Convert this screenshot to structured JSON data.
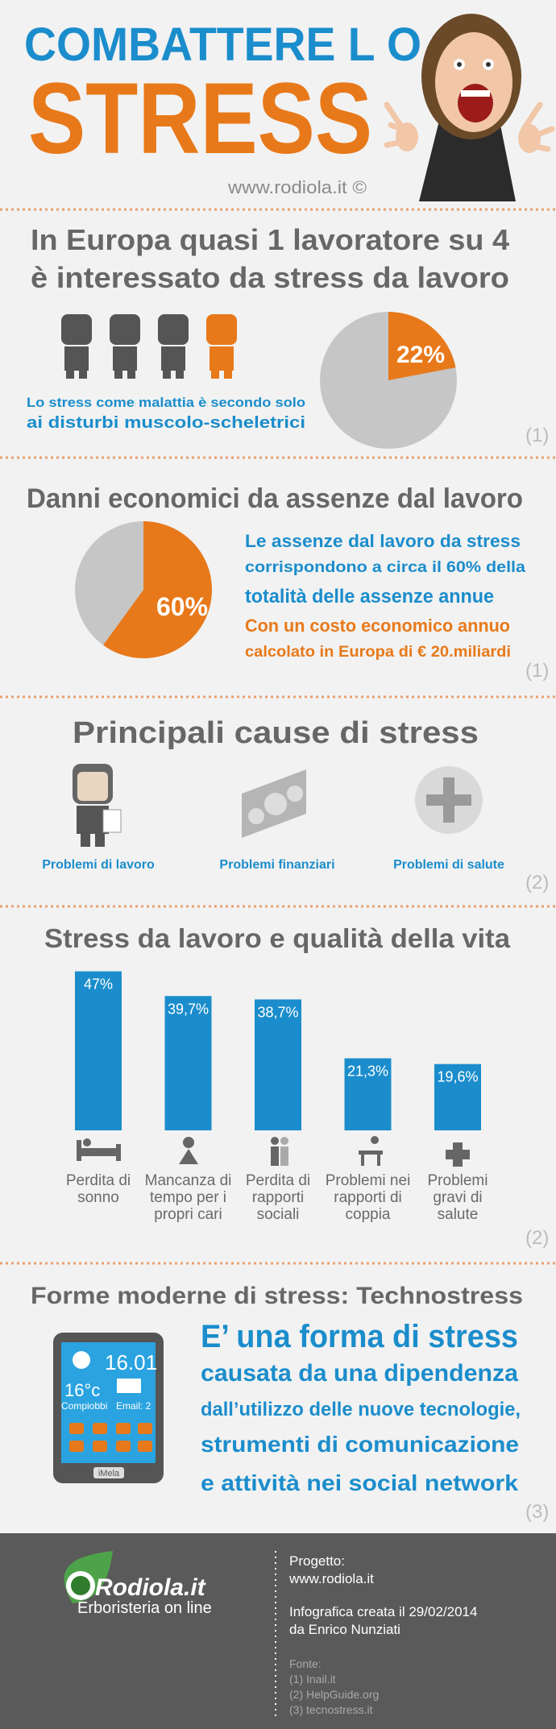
{
  "header": {
    "title_line1": "COMBATTERE L O",
    "title_line2": "STRESS",
    "site": "www.rodiola.it ©"
  },
  "section1": {
    "title_lines": [
      "In Europa quasi 1 lavoratore su 4",
      "è interessato da stress da lavoro"
    ],
    "caption_lines": [
      "Lo stress come  malattia è  secondo solo",
      "ai disturbi muscolo-scheletrici"
    ],
    "pie": {
      "type": "pie",
      "values": [
        22
      ],
      "value_labels": [
        "22%"
      ],
      "color": "#e8791a",
      "rest_color": "#c6c6c6"
    },
    "source": "(1)"
  },
  "section2": {
    "title": "Danni economici da assenze dal lavoro",
    "text_lines": [
      "Le assenze dal lavoro da stress",
      "corrispondono a circa  il 60% della",
      "totalità delle assenze annue",
      "Con un costo economico annuo",
      "calcolato in Europa di € 20.miliardi"
    ],
    "pie": {
      "type": "pie",
      "values": [
        60
      ],
      "value_labels": [
        "60%"
      ],
      "color": "#e8791a",
      "rest_color": "#c6c6c6"
    },
    "source": "(1)"
  },
  "section3": {
    "title": "Principali cause di stress",
    "causes": [
      "Problemi di lavoro",
      "Problemi finanziari",
      "Problemi di salute"
    ],
    "source": "(2)"
  },
  "chart_data": {
    "type": "bar",
    "title": "Stress da lavoro e qualità della vita",
    "categories": [
      "Perdita di sonno",
      "Mancanza di tempo per i propri cari",
      "Perdita di rapporti sociali",
      "Problemi nei rapporti di coppia",
      "Problemi gravi di salute"
    ],
    "values": [
      47,
      39.7,
      38.7,
      21.3,
      19.6
    ],
    "value_labels": [
      "47%",
      "39,7%",
      "38,7%",
      "21,3%",
      "19,6%"
    ],
    "color": "#1b8dcc"
  },
  "section4": {
    "source": "(2)"
  },
  "section5": {
    "title": "Forme moderne di stress: Technostress",
    "text_lines": [
      "E’ una forma di stress",
      "causata da una dipendenza",
      "dall’utilizzo delle nuove tecnologie,",
      "strumenti di comunicazione",
      "e attività nei social network"
    ],
    "phone": {
      "time": "16.01",
      "temp": "16°c",
      "city": "Compiobbi",
      "email": "Email: 2",
      "brand": "iMela"
    },
    "source": "(3)"
  },
  "footer": {
    "logo": "Rodiola.it",
    "tagline": "Erboristeria on line",
    "project_label": "Progetto:",
    "project_url": "www.rodiola.it",
    "created": "Infografica creata il 29/02/2014",
    "author": "da Enrico Nunziati",
    "sources_label": "Fonte:",
    "sources": [
      "(1) Inail.it",
      "(2) HelpGuide.org",
      "(3) tecnostress.it"
    ]
  }
}
